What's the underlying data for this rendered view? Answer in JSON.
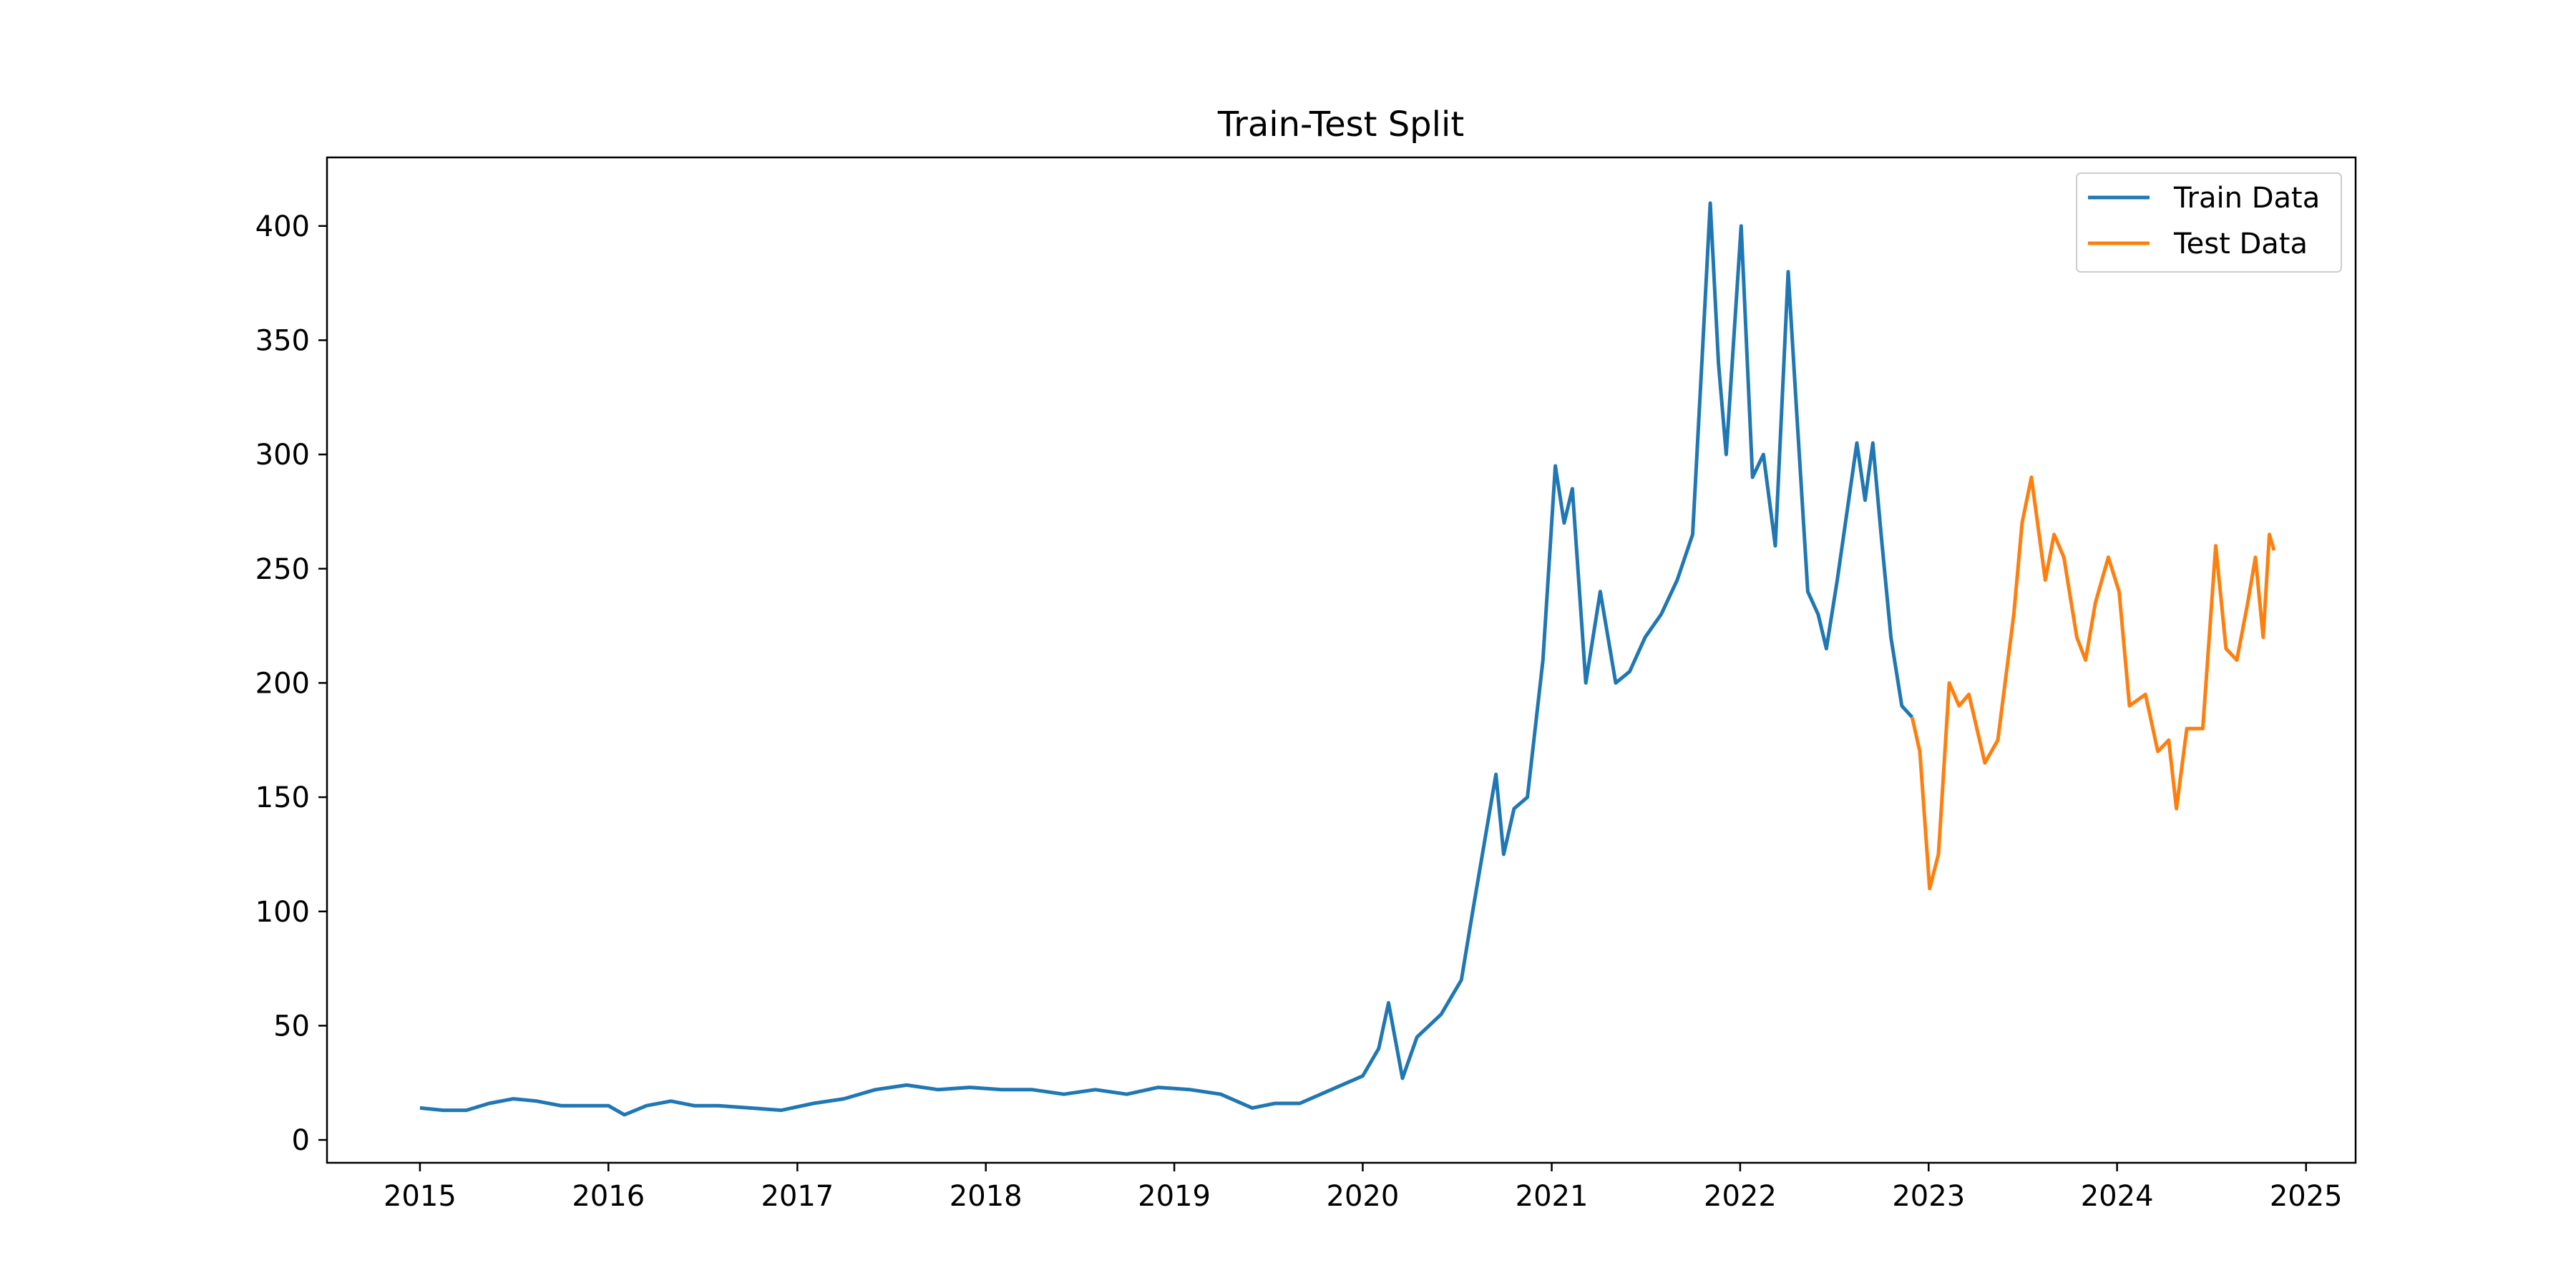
{
  "chart_data": {
    "type": "line",
    "title": "Train-Test Split",
    "xlabel": "",
    "ylabel": "",
    "x_ticks": [
      "2015",
      "2016",
      "2017",
      "2018",
      "2019",
      "2020",
      "2021",
      "2022",
      "2023",
      "2024",
      "2025"
    ],
    "y_ticks": [
      "0",
      "50",
      "100",
      "150",
      "200",
      "250",
      "300",
      "350",
      "400"
    ],
    "xlim": [
      "2014-07-05",
      "2025-04-07"
    ],
    "ylim": [
      -10,
      430
    ],
    "grid": false,
    "legend_position": "top-right",
    "series": [
      {
        "name": "Train Data",
        "color": "#1f77b4",
        "points": [
          [
            "2015-01-01",
            14
          ],
          [
            "2015-02-15",
            13
          ],
          [
            "2015-04-01",
            13
          ],
          [
            "2015-05-15",
            16
          ],
          [
            "2015-07-01",
            18
          ],
          [
            "2015-08-15",
            17
          ],
          [
            "2015-10-01",
            15
          ],
          [
            "2015-11-15",
            15
          ],
          [
            "2016-01-01",
            15
          ],
          [
            "2016-02-01",
            11
          ],
          [
            "2016-03-15",
            15
          ],
          [
            "2016-05-01",
            17
          ],
          [
            "2016-06-15",
            15
          ],
          [
            "2016-08-01",
            15
          ],
          [
            "2016-10-01",
            14
          ],
          [
            "2016-12-01",
            13
          ],
          [
            "2017-02-01",
            16
          ],
          [
            "2017-04-01",
            18
          ],
          [
            "2017-06-01",
            22
          ],
          [
            "2017-08-01",
            24
          ],
          [
            "2017-10-01",
            22
          ],
          [
            "2017-12-01",
            23
          ],
          [
            "2018-02-01",
            22
          ],
          [
            "2018-04-01",
            22
          ],
          [
            "2018-06-01",
            20
          ],
          [
            "2018-08-01",
            22
          ],
          [
            "2018-10-01",
            20
          ],
          [
            "2018-12-01",
            23
          ],
          [
            "2019-02-01",
            22
          ],
          [
            "2019-04-01",
            20
          ],
          [
            "2019-06-01",
            14
          ],
          [
            "2019-07-15",
            16
          ],
          [
            "2019-09-01",
            16
          ],
          [
            "2019-11-01",
            22
          ],
          [
            "2020-01-01",
            28
          ],
          [
            "2020-02-01",
            40
          ],
          [
            "2020-02-20",
            60
          ],
          [
            "2020-03-18",
            27
          ],
          [
            "2020-04-15",
            45
          ],
          [
            "2020-06-01",
            55
          ],
          [
            "2020-07-10",
            70
          ],
          [
            "2020-08-01",
            100
          ],
          [
            "2020-08-31",
            140
          ],
          [
            "2020-09-15",
            160
          ],
          [
            "2020-09-30",
            125
          ],
          [
            "2020-10-20",
            145
          ],
          [
            "2020-11-15",
            150
          ],
          [
            "2020-12-15",
            210
          ],
          [
            "2021-01-08",
            295
          ],
          [
            "2021-01-25",
            270
          ],
          [
            "2021-02-10",
            285
          ],
          [
            "2021-03-08",
            200
          ],
          [
            "2021-04-05",
            240
          ],
          [
            "2021-05-05",
            200
          ],
          [
            "2021-06-01",
            205
          ],
          [
            "2021-07-01",
            220
          ],
          [
            "2021-08-01",
            230
          ],
          [
            "2021-09-01",
            245
          ],
          [
            "2021-10-01",
            265
          ],
          [
            "2021-10-20",
            345
          ],
          [
            "2021-11-04",
            410
          ],
          [
            "2021-11-20",
            340
          ],
          [
            "2021-12-05",
            300
          ],
          [
            "2022-01-03",
            400
          ],
          [
            "2022-01-25",
            290
          ],
          [
            "2022-02-15",
            300
          ],
          [
            "2022-03-10",
            260
          ],
          [
            "2022-04-04",
            380
          ],
          [
            "2022-04-20",
            320
          ],
          [
            "2022-05-12",
            240
          ],
          [
            "2022-06-01",
            230
          ],
          [
            "2022-06-17",
            215
          ],
          [
            "2022-07-08",
            245
          ],
          [
            "2022-08-15",
            305
          ],
          [
            "2022-08-31",
            280
          ],
          [
            "2022-09-15",
            305
          ],
          [
            "2022-10-01",
            265
          ],
          [
            "2022-10-20",
            220
          ],
          [
            "2022-11-10",
            190
          ],
          [
            "2022-11-30",
            185
          ]
        ]
      },
      {
        "name": "Test Data",
        "color": "#ff7f0e",
        "points": [
          [
            "2022-11-30",
            185
          ],
          [
            "2022-12-15",
            170
          ],
          [
            "2023-01-03",
            110
          ],
          [
            "2023-01-20",
            125
          ],
          [
            "2023-02-10",
            200
          ],
          [
            "2023-03-01",
            190
          ],
          [
            "2023-03-20",
            195
          ],
          [
            "2023-04-20",
            165
          ],
          [
            "2023-05-15",
            175
          ],
          [
            "2023-06-15",
            230
          ],
          [
            "2023-07-01",
            270
          ],
          [
            "2023-07-19",
            290
          ],
          [
            "2023-08-15",
            245
          ],
          [
            "2023-09-01",
            265
          ],
          [
            "2023-09-20",
            255
          ],
          [
            "2023-10-15",
            220
          ],
          [
            "2023-11-01",
            210
          ],
          [
            "2023-11-20",
            235
          ],
          [
            "2023-12-15",
            255
          ],
          [
            "2024-01-05",
            240
          ],
          [
            "2024-01-25",
            190
          ],
          [
            "2024-02-25",
            195
          ],
          [
            "2024-03-20",
            170
          ],
          [
            "2024-04-10",
            175
          ],
          [
            "2024-04-25",
            145
          ],
          [
            "2024-05-15",
            180
          ],
          [
            "2024-06-15",
            180
          ],
          [
            "2024-07-10",
            260
          ],
          [
            "2024-07-30",
            215
          ],
          [
            "2024-08-20",
            210
          ],
          [
            "2024-09-10",
            235
          ],
          [
            "2024-09-25",
            255
          ],
          [
            "2024-10-10",
            220
          ],
          [
            "2024-10-22",
            265
          ],
          [
            "2024-10-31",
            258
          ]
        ]
      }
    ]
  }
}
